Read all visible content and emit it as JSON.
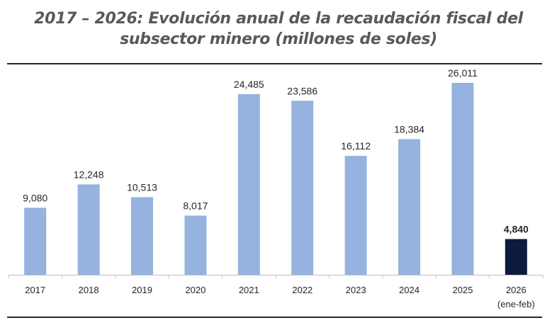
{
  "chart_data": {
    "type": "bar",
    "title": "2017 – 2026: Evolución anual de la recaudación fiscal del subsector minero (millones de soles)",
    "title_lines": [
      "2017 – 2026: Evolución anual de la recaudación fiscal del",
      "subsector minero (millones de soles)"
    ],
    "categories": [
      "2017",
      "2018",
      "2019",
      "2020",
      "2021",
      "2022",
      "2023",
      "2024",
      "2025",
      "2026"
    ],
    "category_sublabels": [
      "",
      "",
      "",
      "",
      "",
      "",
      "",
      "",
      "",
      "(ene-feb)"
    ],
    "values": [
      9080,
      12248,
      10513,
      8017,
      24485,
      23586,
      16112,
      18384,
      26011,
      4840
    ],
    "data_labels": [
      "9,080",
      "12,248",
      "10,513",
      "8,017",
      "24,485",
      "23,586",
      "16,112",
      "18,384",
      "26,011",
      "4,840"
    ],
    "highlight_index": 9,
    "colors": {
      "bar": "#95b3de",
      "highlight": "#0d1b3e",
      "text": "#262626",
      "title": "#595959"
    },
    "xlabel": "",
    "ylabel": "",
    "ylim": [
      0,
      26011
    ],
    "grid": false,
    "legend": "none"
  }
}
